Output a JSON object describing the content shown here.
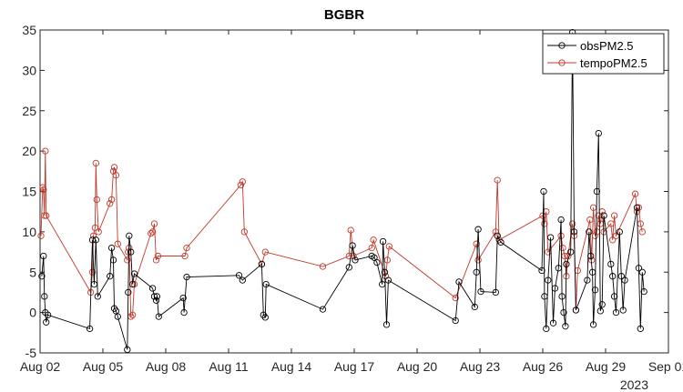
{
  "chart_data": {
    "type": "line",
    "title": "BGBR",
    "xlabel": "",
    "ylabel": "",
    "year_label": "2023",
    "xlim": [
      "2023-08-02",
      "2023-09-01"
    ],
    "ylim": [
      -5,
      35
    ],
    "y_ticks": [
      -5,
      0,
      5,
      10,
      15,
      20,
      25,
      30,
      35
    ],
    "x_ticks": [
      {
        "date": "2023-08-02",
        "label": "Aug 02"
      },
      {
        "date": "2023-08-05",
        "label": "Aug 05"
      },
      {
        "date": "2023-08-08",
        "label": "Aug 08"
      },
      {
        "date": "2023-08-11",
        "label": "Aug 11"
      },
      {
        "date": "2023-08-14",
        "label": "Aug 14"
      },
      {
        "date": "2023-08-17",
        "label": "Aug 17"
      },
      {
        "date": "2023-08-20",
        "label": "Aug 20"
      },
      {
        "date": "2023-08-23",
        "label": "Aug 23"
      },
      {
        "date": "2023-08-26",
        "label": "Aug 26"
      },
      {
        "date": "2023-08-29",
        "label": "Aug 29"
      },
      {
        "date": "2023-09-01",
        "label": "Sep 01"
      }
    ],
    "grid": false,
    "legend_position": "top-right",
    "series": [
      {
        "name": "obsPM2.5",
        "color": "#000000",
        "points": [
          [
            "2023-08-02 02:00",
            4.5
          ],
          [
            "2023-08-02 04:00",
            7.0
          ],
          [
            "2023-08-02 05:00",
            2.0
          ],
          [
            "2023-08-02 06:00",
            0.0
          ],
          [
            "2023-08-02 07:00",
            -1.2
          ],
          [
            "2023-08-02 09:00",
            -0.3
          ],
          [
            "2023-08-04 09:00",
            -2.0
          ],
          [
            "2023-08-04 12:00",
            9.0
          ],
          [
            "2023-08-04 14:00",
            3.5
          ],
          [
            "2023-08-04 16:00",
            9.0
          ],
          [
            "2023-08-04 18:00",
            2.0
          ],
          [
            "2023-08-05 08:00",
            4.5
          ],
          [
            "2023-08-05 10:00",
            8.0
          ],
          [
            "2023-08-05 12:00",
            6.5
          ],
          [
            "2023-08-05 13:00",
            0.5
          ],
          [
            "2023-08-05 15:00",
            0.2
          ],
          [
            "2023-08-05 17:00",
            -0.5
          ],
          [
            "2023-08-06 04:00",
            -4.6
          ],
          [
            "2023-08-06 05:00",
            2.5
          ],
          [
            "2023-08-06 06:00",
            9.5
          ],
          [
            "2023-08-06 08:00",
            7.5
          ],
          [
            "2023-08-06 10:00",
            3.5
          ],
          [
            "2023-08-06 12:00",
            4.8
          ],
          [
            "2023-08-07 09:00",
            3.0
          ],
          [
            "2023-08-07 11:00",
            2.0
          ],
          [
            "2023-08-07 13:00",
            1.5
          ],
          [
            "2023-08-07 14:00",
            2.0
          ],
          [
            "2023-08-07 16:00",
            -0.5
          ],
          [
            "2023-08-08 20:00",
            1.8
          ],
          [
            "2023-08-08 21:00",
            0.0
          ],
          [
            "2023-08-09 00:00",
            4.4
          ],
          [
            "2023-08-11 12:00",
            4.6
          ],
          [
            "2023-08-11 16:00",
            4.0
          ],
          [
            "2023-08-12 14:00",
            6.0
          ],
          [
            "2023-08-12 16:00",
            -0.3
          ],
          [
            "2023-08-12 18:00",
            -0.6
          ],
          [
            "2023-08-12 19:00",
            3.5
          ],
          [
            "2023-08-15 12:00",
            0.4
          ],
          [
            "2023-08-16 18:00",
            5.6
          ],
          [
            "2023-08-16 22:00",
            8.3
          ],
          [
            "2023-08-17 01:00",
            6.5
          ],
          [
            "2023-08-17 20:00",
            7.0
          ],
          [
            "2023-08-17 23:00",
            6.8
          ],
          [
            "2023-08-18 02:00",
            6.2
          ],
          [
            "2023-08-18 08:00",
            3.5
          ],
          [
            "2023-08-18 09:00",
            8.8
          ],
          [
            "2023-08-18 11:00",
            5.0
          ],
          [
            "2023-08-18 13:00",
            -1.5
          ],
          [
            "2023-08-18 15:00",
            4.0
          ],
          [
            "2023-08-21 20:00",
            -1.0
          ],
          [
            "2023-08-22 00:00",
            3.8
          ],
          [
            "2023-08-22 18:00",
            0.7
          ],
          [
            "2023-08-22 20:00",
            5.0
          ],
          [
            "2023-08-22 22:00",
            10.3
          ],
          [
            "2023-08-23 01:00",
            2.6
          ],
          [
            "2023-08-23 18:00",
            2.5
          ],
          [
            "2023-08-23 20:00",
            9.5
          ],
          [
            "2023-08-24 00:00",
            8.7
          ],
          [
            "2023-08-25 23:00",
            5.2
          ],
          [
            "2023-08-26 01:00",
            15.0
          ],
          [
            "2023-08-26 02:00",
            2.0
          ],
          [
            "2023-08-26 04:00",
            -2.0
          ],
          [
            "2023-08-26 06:00",
            4.0
          ],
          [
            "2023-08-26 09:00",
            9.3
          ],
          [
            "2023-08-26 12:00",
            -1.3
          ],
          [
            "2023-08-26 14:00",
            3.0
          ],
          [
            "2023-08-26 18:00",
            5.5
          ],
          [
            "2023-08-26 21:00",
            11.5
          ],
          [
            "2023-08-26 22:00",
            2.0
          ],
          [
            "2023-08-27 00:00",
            0.0
          ],
          [
            "2023-08-27 02:00",
            -1.7
          ],
          [
            "2023-08-27 03:00",
            6.0
          ],
          [
            "2023-08-27 08:00",
            7.5
          ],
          [
            "2023-08-27 10:00",
            34.7
          ],
          [
            "2023-08-27 12:00",
            10.0
          ],
          [
            "2023-08-27 14:00",
            0.3
          ],
          [
            "2023-08-28 03:00",
            4.0
          ],
          [
            "2023-08-28 05:00",
            10.0
          ],
          [
            "2023-08-28 07:00",
            7.0
          ],
          [
            "2023-08-28 09:00",
            5.0
          ],
          [
            "2023-08-28 10:00",
            -1.5
          ],
          [
            "2023-08-28 12:00",
            2.8
          ],
          [
            "2023-08-28 14:00",
            15.0
          ],
          [
            "2023-08-28 16:00",
            22.2
          ],
          [
            "2023-08-28 18:00",
            0.2
          ],
          [
            "2023-08-28 20:00",
            1.0
          ],
          [
            "2023-08-28 22:00",
            12.0
          ],
          [
            "2023-08-29 06:00",
            6.0
          ],
          [
            "2023-08-29 08:00",
            4.5
          ],
          [
            "2023-08-29 10:00",
            2.0
          ],
          [
            "2023-08-29 12:00",
            0.0
          ],
          [
            "2023-08-29 16:00",
            10.0
          ],
          [
            "2023-08-29 18:00",
            4.5
          ],
          [
            "2023-08-29 20:00",
            0.3
          ],
          [
            "2023-08-29 22:00",
            4.0
          ],
          [
            "2023-08-30 12:00",
            13.0
          ],
          [
            "2023-08-30 14:00",
            5.5
          ],
          [
            "2023-08-30 16:00",
            -2.0
          ],
          [
            "2023-08-30 18:00",
            5.0
          ],
          [
            "2023-08-30 20:00",
            2.6
          ]
        ]
      },
      {
        "name": "tempoPM2.5",
        "color": "#c0392b",
        "points": [
          [
            "2023-08-02 01:00",
            9.5
          ],
          [
            "2023-08-02 03:00",
            15.5
          ],
          [
            "2023-08-02 04:00",
            15.2
          ],
          [
            "2023-08-02 05:00",
            12.0
          ],
          [
            "2023-08-02 06:00",
            20.0
          ],
          [
            "2023-08-02 07:00",
            12.0
          ],
          [
            "2023-08-04 10:00",
            2.5
          ],
          [
            "2023-08-04 12:00",
            5.0
          ],
          [
            "2023-08-04 13:00",
            9.5
          ],
          [
            "2023-08-04 15:00",
            10.5
          ],
          [
            "2023-08-04 16:00",
            18.5
          ],
          [
            "2023-08-04 17:00",
            14.0
          ],
          [
            "2023-08-04 19:00",
            10.0
          ],
          [
            "2023-08-05 08:00",
            13.5
          ],
          [
            "2023-08-05 10:00",
            14.0
          ],
          [
            "2023-08-05 12:00",
            17.5
          ],
          [
            "2023-08-05 13:00",
            18.0
          ],
          [
            "2023-08-05 15:00",
            17.0
          ],
          [
            "2023-08-05 17:00",
            8.5
          ],
          [
            "2023-08-06 04:00",
            6.5
          ],
          [
            "2023-08-06 05:00",
            7.5
          ],
          [
            "2023-08-06 06:00",
            8.0
          ],
          [
            "2023-08-06 08:00",
            -0.5
          ],
          [
            "2023-08-06 10:00",
            -0.3
          ],
          [
            "2023-08-06 12:00",
            3.5
          ],
          [
            "2023-08-07 07:00",
            9.8
          ],
          [
            "2023-08-07 09:00",
            10.0
          ],
          [
            "2023-08-07 11:00",
            11.0
          ],
          [
            "2023-08-07 13:00",
            6.5
          ],
          [
            "2023-08-07 15:00",
            7.0
          ],
          [
            "2023-08-08 22:00",
            7.0
          ],
          [
            "2023-08-09 00:00",
            8.0
          ],
          [
            "2023-08-11 14:00",
            15.8
          ],
          [
            "2023-08-11 16:00",
            16.2
          ],
          [
            "2023-08-11 18:00",
            10.0
          ],
          [
            "2023-08-12 14:00",
            6.0
          ],
          [
            "2023-08-12 18:00",
            7.5
          ],
          [
            "2023-08-15 12:00",
            5.7
          ],
          [
            "2023-08-16 18:00",
            7.0
          ],
          [
            "2023-08-16 20:00",
            10.2
          ],
          [
            "2023-08-16 23:00",
            7.0
          ],
          [
            "2023-08-17 20:00",
            8.0
          ],
          [
            "2023-08-17 22:00",
            9.0
          ],
          [
            "2023-08-18 12:00",
            4.5
          ],
          [
            "2023-08-18 14:00",
            6.5
          ],
          [
            "2023-08-18 16:00",
            8.2
          ],
          [
            "2023-08-21 20:00",
            1.8
          ],
          [
            "2023-08-22 20:00",
            8.5
          ],
          [
            "2023-08-22 22:00",
            6.5
          ],
          [
            "2023-08-23 18:00",
            10.0
          ],
          [
            "2023-08-23 20:00",
            16.4
          ],
          [
            "2023-08-23 22:00",
            9.0
          ],
          [
            "2023-08-26 00:00",
            12.0
          ],
          [
            "2023-08-26 02:00",
            11.0
          ],
          [
            "2023-08-26 04:00",
            12.5
          ],
          [
            "2023-08-26 06:00",
            7.5
          ],
          [
            "2023-08-26 21:00",
            9.5
          ],
          [
            "2023-08-26 23:00",
            8.0
          ],
          [
            "2023-08-27 01:00",
            7.0
          ],
          [
            "2023-08-27 03:00",
            4.5
          ],
          [
            "2023-08-27 05:00",
            7.0
          ],
          [
            "2023-08-27 10:00",
            11.0
          ],
          [
            "2023-08-27 12:00",
            9.5
          ],
          [
            "2023-08-27 14:00",
            0.3
          ],
          [
            "2023-08-27 16:00",
            5.2
          ],
          [
            "2023-08-28 06:00",
            11.5
          ],
          [
            "2023-08-28 08:00",
            6.5
          ],
          [
            "2023-08-28 10:00",
            13.0
          ],
          [
            "2023-08-28 12:00",
            9.5
          ],
          [
            "2023-08-28 14:00",
            10.0
          ],
          [
            "2023-08-28 16:00",
            12.0
          ],
          [
            "2023-08-28 18:00",
            11.0
          ],
          [
            "2023-08-28 20:00",
            12.5
          ],
          [
            "2023-08-28 22:00",
            10.0
          ],
          [
            "2023-08-29 06:00",
            11.0
          ],
          [
            "2023-08-29 08:00",
            9.0
          ],
          [
            "2023-08-29 10:00",
            12.0
          ],
          [
            "2023-08-29 12:00",
            9.5
          ],
          [
            "2023-08-30 10:00",
            14.7
          ],
          [
            "2023-08-30 12:00",
            12.5
          ],
          [
            "2023-08-30 14:00",
            13.0
          ],
          [
            "2023-08-30 16:00",
            11.0
          ],
          [
            "2023-08-30 18:00",
            10.0
          ]
        ]
      }
    ]
  }
}
